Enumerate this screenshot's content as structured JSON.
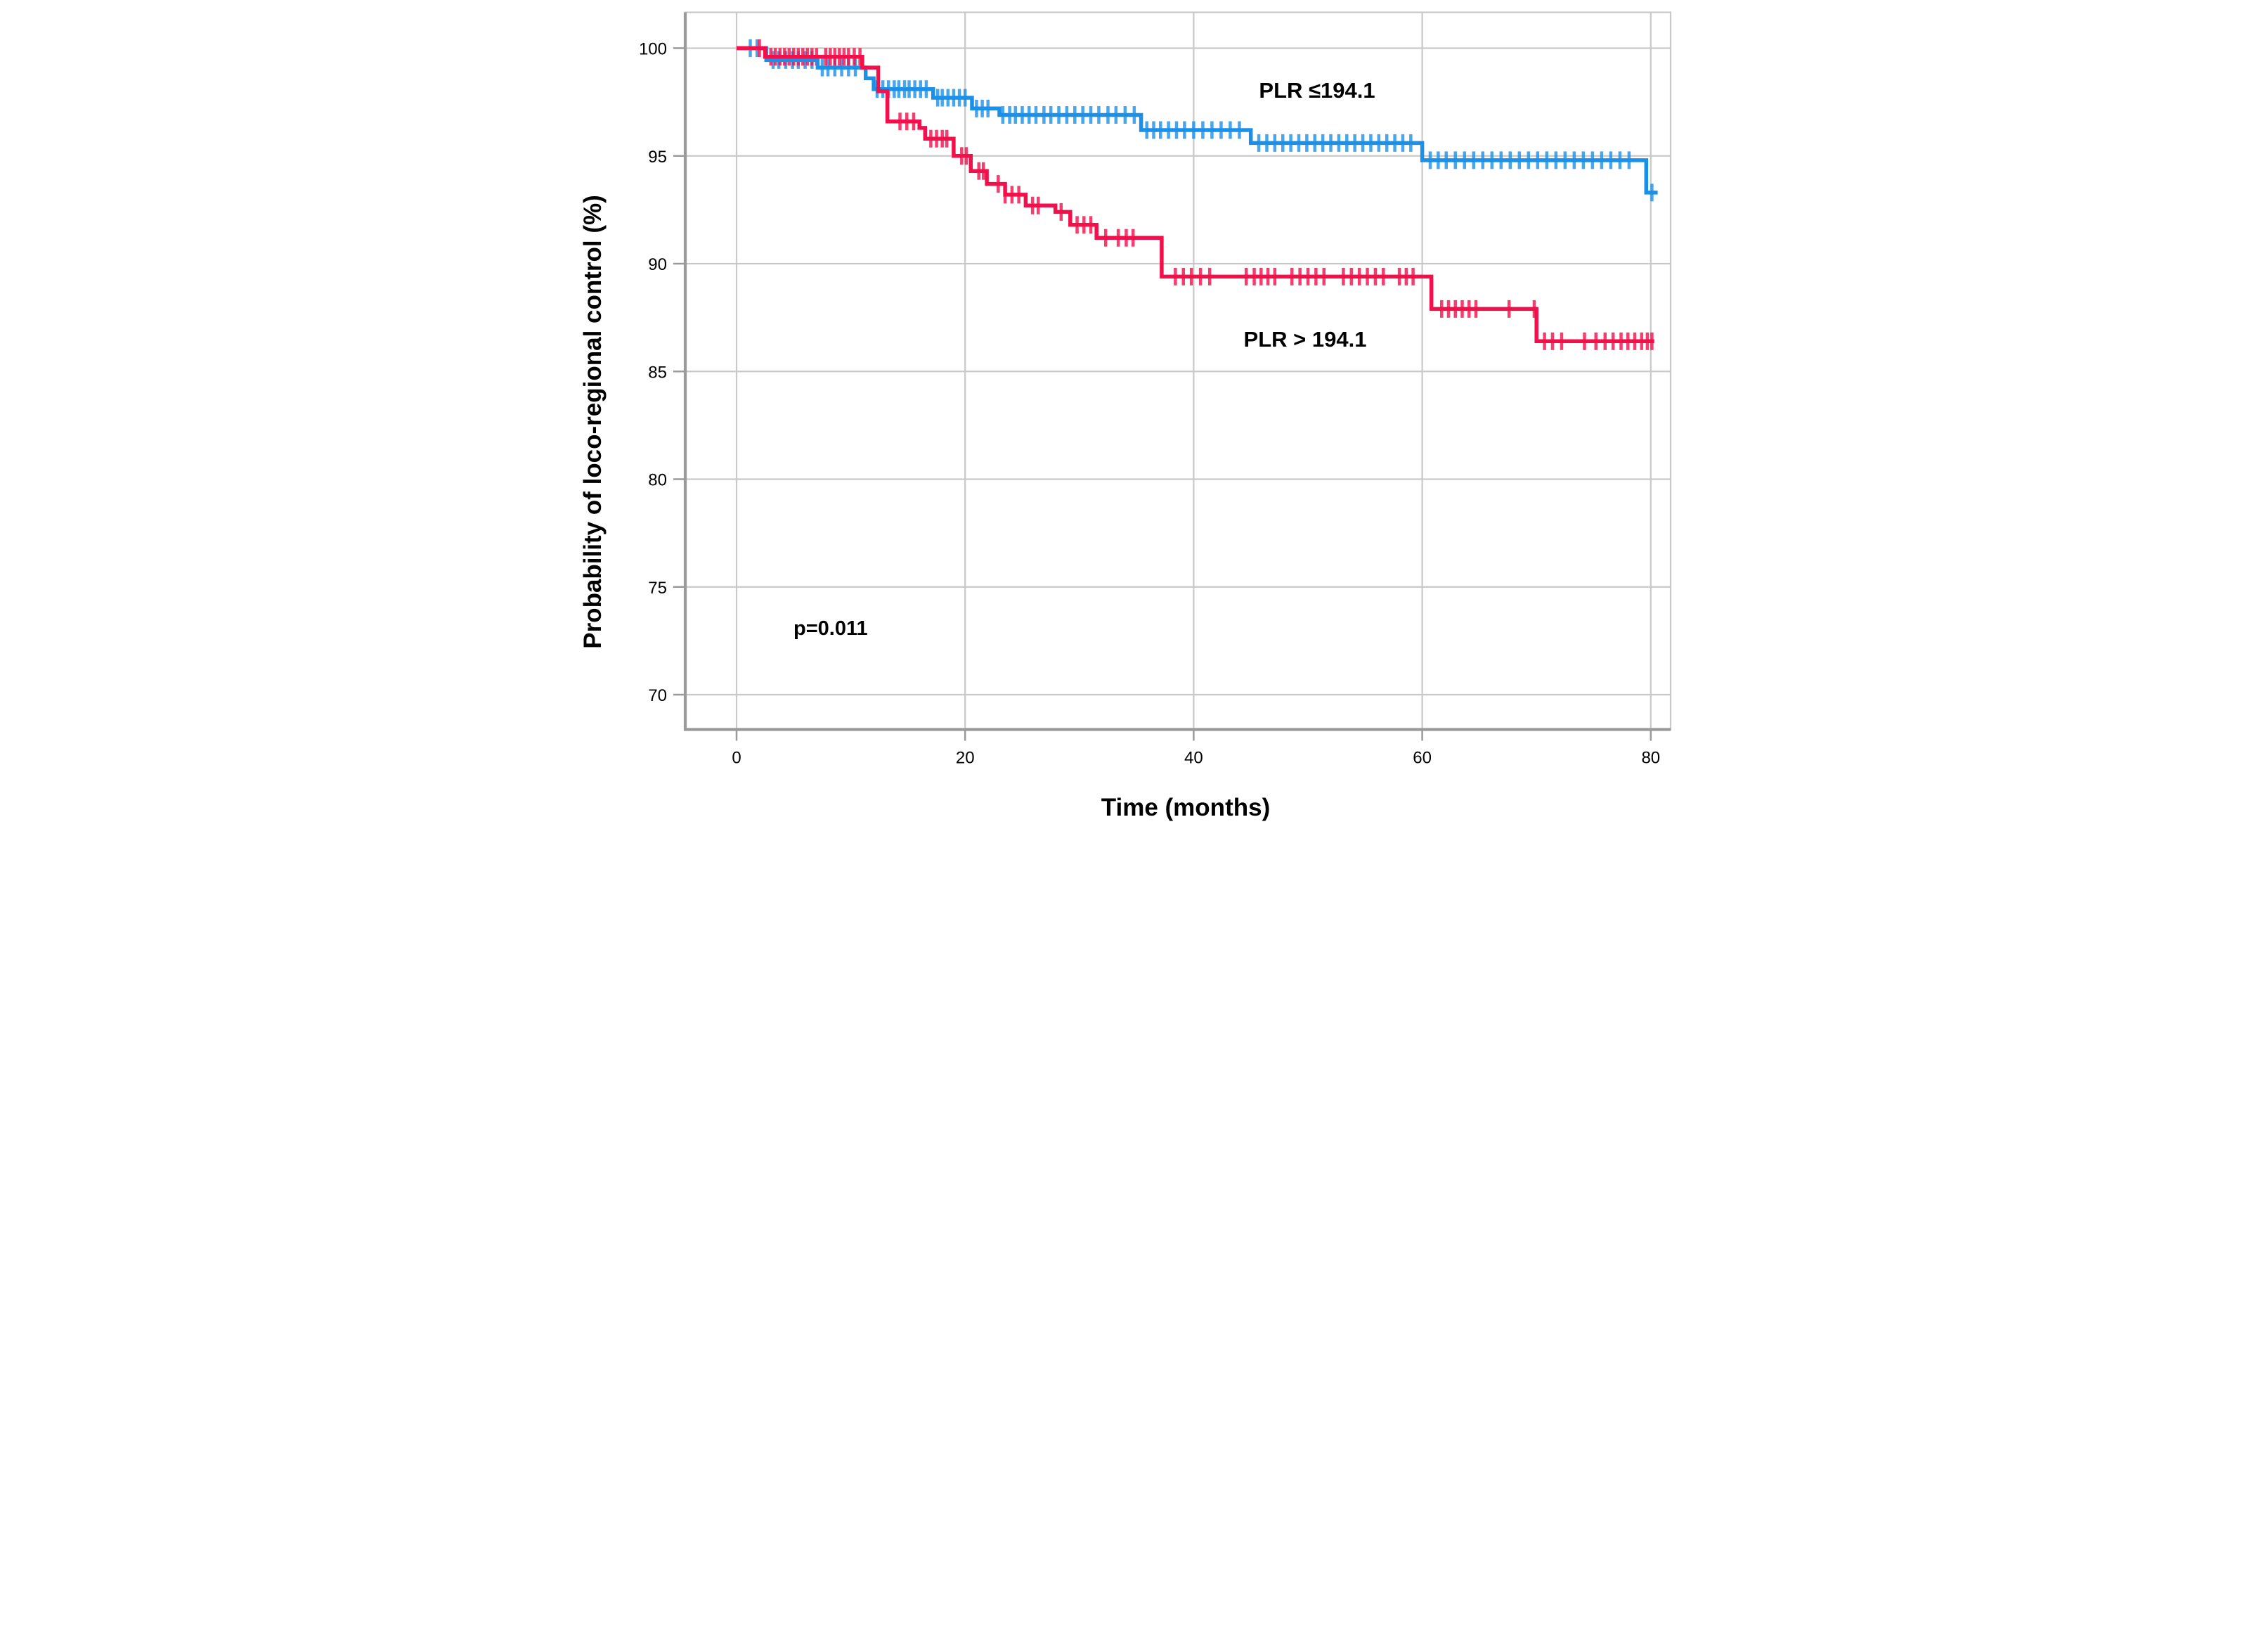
{
  "figure": {
    "annotations": {
      "group_high_label": "PLR ≤194.1",
      "group_low_label": "PLR > 194.1",
      "p_value": "p=0.011"
    }
  },
  "colors": {
    "blue": "#1b90e8",
    "red": "#f2104b",
    "grid": "#c9c9c9",
    "axis": "#9a9a9a",
    "text": "#000000",
    "background": "#ffffff"
  },
  "chart_data": {
    "type": "line",
    "subtype": "kaplan-meier-step",
    "title": "",
    "xlabel": "Time (months)",
    "ylabel": "Probability of loco-regional control (%)",
    "xlim": [
      -4.5,
      81.7
    ],
    "ylim": [
      68.4,
      101.7
    ],
    "x_ticks": [
      0,
      20,
      40,
      60,
      80
    ],
    "y_ticks": [
      70,
      75,
      80,
      85,
      90,
      95,
      100
    ],
    "grid": true,
    "legend_position": "inline-annotations",
    "series": [
      {
        "name": "PLR ≤194.1",
        "color_key": "blue",
        "steps": [
          [
            0,
            100
          ],
          [
            2.6,
            99.45
          ],
          [
            7.1,
            99.1
          ],
          [
            11.3,
            98.6
          ],
          [
            12.0,
            98.1
          ],
          [
            17.2,
            97.7
          ],
          [
            20.6,
            97.2
          ],
          [
            23.0,
            96.9
          ],
          [
            35.4,
            96.2
          ],
          [
            45.0,
            95.6
          ],
          [
            60.0,
            94.8
          ],
          [
            79.6,
            93.3
          ]
        ],
        "end_time": 80.6,
        "censors": [
          1.2,
          1.8,
          3.2,
          3.7,
          4.3,
          4.9,
          5.4,
          6.0,
          6.6,
          7.5,
          8.0,
          8.6,
          9.2,
          9.8,
          10.4,
          12.3,
          12.8,
          13.3,
          13.8,
          14.2,
          14.7,
          15.1,
          15.6,
          16.1,
          16.6,
          17.6,
          18.0,
          18.5,
          19.0,
          19.5,
          20.0,
          21.0,
          21.5,
          22.0,
          23.3,
          23.9,
          24.4,
          25.0,
          25.6,
          26.2,
          26.9,
          27.5,
          28.2,
          28.9,
          29.6,
          30.3,
          31.0,
          31.7,
          32.5,
          33.2,
          34.0,
          34.8,
          35.9,
          36.5,
          37.1,
          37.8,
          38.5,
          39.2,
          40.0,
          40.8,
          41.6,
          42.4,
          43.2,
          44.0,
          45.7,
          46.4,
          47.1,
          47.8,
          48.5,
          49.2,
          49.9,
          50.6,
          51.3,
          52.0,
          52.7,
          53.4,
          54.1,
          54.8,
          55.5,
          56.2,
          56.9,
          57.6,
          58.3,
          59.0,
          60.7,
          61.4,
          62.1,
          62.9,
          63.7,
          64.5,
          65.3,
          66.1,
          66.9,
          67.7,
          68.5,
          69.3,
          70.1,
          70.9,
          71.7,
          72.5,
          73.3,
          74.1,
          74.9,
          75.7,
          76.5,
          77.3,
          78.1,
          80.1
        ]
      },
      {
        "name": "PLR > 194.1",
        "color_key": "red",
        "steps": [
          [
            0,
            100
          ],
          [
            2.5,
            99.6
          ],
          [
            11.0,
            99.1
          ],
          [
            12.4,
            98.0
          ],
          [
            13.2,
            96.6
          ],
          [
            16.0,
            96.3
          ],
          [
            16.5,
            95.8
          ],
          [
            19.0,
            95.0
          ],
          [
            20.5,
            94.3
          ],
          [
            21.9,
            93.7
          ],
          [
            23.5,
            93.2
          ],
          [
            25.3,
            92.7
          ],
          [
            27.9,
            92.4
          ],
          [
            29.2,
            91.8
          ],
          [
            31.5,
            91.2
          ],
          [
            37.2,
            89.4
          ],
          [
            60.8,
            87.9
          ],
          [
            70.0,
            86.4
          ]
        ],
        "end_time": 80.3,
        "censors": [
          2.0,
          3.0,
          3.4,
          3.8,
          4.2,
          4.6,
          5.0,
          5.4,
          5.8,
          6.2,
          6.6,
          7.0,
          7.8,
          8.2,
          8.6,
          9.0,
          9.4,
          9.8,
          10.3,
          10.8,
          14.3,
          14.9,
          15.5,
          17.0,
          17.5,
          18.0,
          18.4,
          19.7,
          20.1,
          21.2,
          21.6,
          22.9,
          23.5,
          24.1,
          24.7,
          25.9,
          26.4,
          28.4,
          29.8,
          30.4,
          31.0,
          32.3,
          33.4,
          34.1,
          34.7,
          38.4,
          39.1,
          39.8,
          40.6,
          41.4,
          44.6,
          45.3,
          45.9,
          46.5,
          47.1,
          48.6,
          49.3,
          50.0,
          50.7,
          51.4,
          53.1,
          53.8,
          54.5,
          55.2,
          55.9,
          56.6,
          58.0,
          58.6,
          59.2,
          61.7,
          62.3,
          62.9,
          63.5,
          64.1,
          64.7,
          67.6,
          69.8,
          70.7,
          71.4,
          72.2,
          74.2,
          75.2,
          76.0,
          76.7,
          77.4,
          78.0,
          78.6,
          79.2,
          79.7,
          80.1
        ]
      }
    ]
  }
}
